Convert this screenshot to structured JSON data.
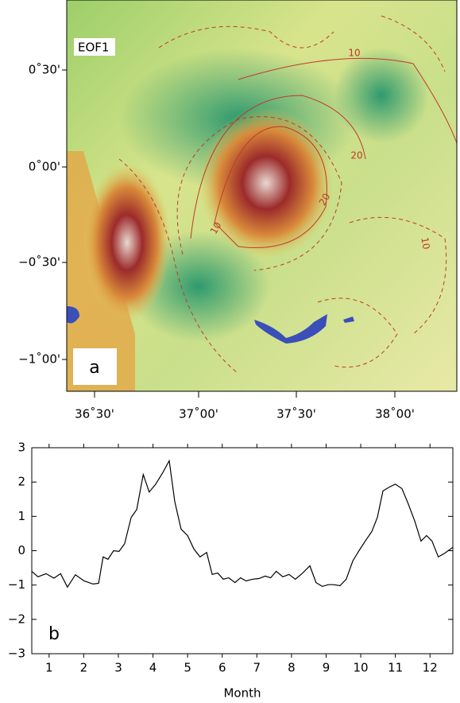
{
  "map": {
    "label": "EOF1",
    "panel": "a",
    "xtick_labels": [
      "36˚30'",
      "37˚00'",
      "37˚30'",
      "38˚00'"
    ],
    "ytick_labels": [
      "0˚30'",
      "0˚00'",
      "−0˚30'",
      "−1˚00'"
    ],
    "contour_labels": [
      "10",
      "20",
      "20",
      "10",
      "10"
    ]
  },
  "chart_data": {
    "type": "line",
    "panel": "b",
    "xlabel": "Month",
    "x": [
      0.5,
      0.68,
      0.91,
      1.14,
      1.33,
      1.53,
      1.76,
      2.01,
      2.27,
      2.43,
      2.56,
      2.7,
      2.86,
      3.02,
      3.18,
      3.37,
      3.53,
      3.72,
      3.89,
      4.08,
      4.28,
      4.47,
      4.63,
      4.81,
      5.0,
      5.18,
      5.36,
      5.55,
      5.71,
      5.87,
      6.03,
      6.19,
      6.37,
      6.53,
      6.69,
      6.88,
      7.06,
      7.24,
      7.4,
      7.56,
      7.75,
      7.93,
      8.11,
      8.3,
      8.53,
      8.71,
      8.89,
      9.06,
      9.22,
      9.4,
      9.58,
      9.77,
      9.95,
      10.13,
      10.32,
      10.48,
      10.64,
      10.82,
      11.0,
      11.19,
      11.37,
      11.56,
      11.74,
      11.9,
      12.06,
      12.24,
      12.43,
      12.66
    ],
    "values": [
      -0.6,
      -0.76,
      -0.67,
      -0.8,
      -0.67,
      -1.06,
      -0.7,
      -0.88,
      -0.97,
      -0.95,
      -0.18,
      -0.25,
      0,
      -0.02,
      0.2,
      0.97,
      1.2,
      2.22,
      1.71,
      1.94,
      2.27,
      2.62,
      1.43,
      0.63,
      0.44,
      0.05,
      -0.18,
      -0.05,
      -0.69,
      -0.65,
      -0.83,
      -0.79,
      -0.93,
      -0.79,
      -0.88,
      -0.83,
      -0.81,
      -0.74,
      -0.79,
      -0.6,
      -0.76,
      -0.69,
      -0.83,
      -0.67,
      -0.44,
      -0.93,
      -1.04,
      -0.99,
      -0.99,
      -1.02,
      -0.83,
      -0.3,
      0,
      0.28,
      0.56,
      0.97,
      1.74,
      1.85,
      1.94,
      1.81,
      1.37,
      0.86,
      0.28,
      0.44,
      0.28,
      -0.18,
      -0.07,
      0.1
    ],
    "color": "#000000",
    "xlim": [
      0.5,
      12.66
    ],
    "xticks": [
      1,
      2,
      3,
      4,
      5,
      6,
      7,
      8,
      9,
      10,
      11,
      12
    ],
    "ylim": [
      -3,
      3
    ],
    "yticks": [
      {
        "value": -3,
        "label": "−3"
      },
      {
        "value": -2,
        "label": "−2"
      },
      {
        "value": -1,
        "label": "−1"
      },
      0,
      1,
      2,
      3
    ]
  }
}
